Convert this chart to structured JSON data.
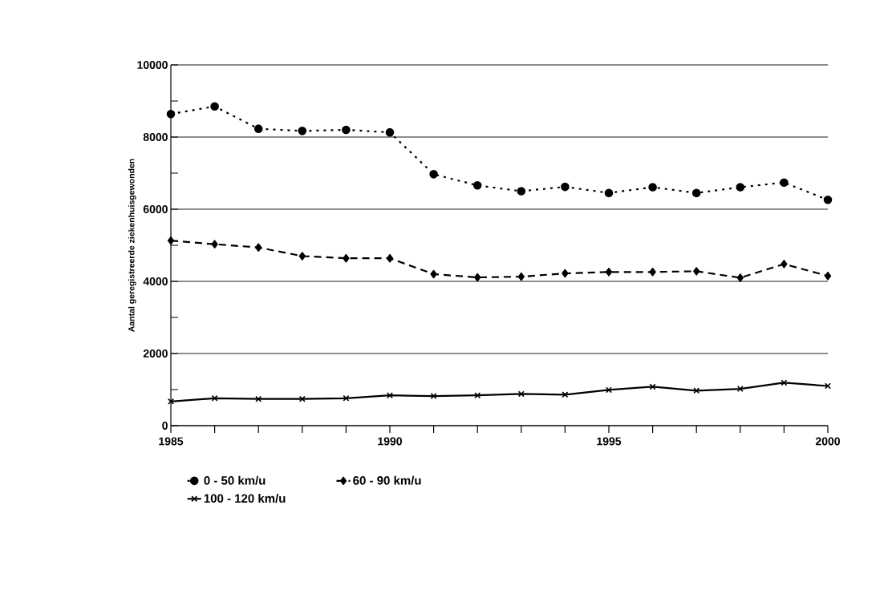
{
  "chart_data": {
    "type": "line",
    "ylabel": "Aantal geregistreerde ziekenhuisgewonden",
    "x": [
      1985,
      1986,
      1987,
      1988,
      1989,
      1990,
      1991,
      1992,
      1993,
      1994,
      1995,
      1996,
      1997,
      1998,
      1999,
      2000
    ],
    "series": [
      {
        "name": "0 - 50 km/u",
        "color": "#000000",
        "line_style": "dotted",
        "marker": "circle",
        "values": [
          8640,
          8850,
          8230,
          8170,
          8200,
          8130,
          6970,
          6660,
          6500,
          6620,
          6450,
          6610,
          6450,
          6610,
          6740,
          6260
        ]
      },
      {
        "name": "60 - 90 km/u",
        "color": "#000000",
        "line_style": "dashed",
        "marker": "diamond",
        "values": [
          5130,
          5030,
          4940,
          4700,
          4640,
          4640,
          4200,
          4110,
          4130,
          4220,
          4260,
          4260,
          4280,
          4100,
          4480,
          4150
        ]
      },
      {
        "name": "100 - 120 km/u",
        "color": "#000000",
        "line_style": "solid",
        "marker": "cross",
        "values": [
          670,
          760,
          740,
          740,
          760,
          840,
          820,
          840,
          880,
          860,
          990,
          1080,
          970,
          1020,
          1190,
          1100
        ]
      }
    ],
    "xlim": [
      1985,
      2000
    ],
    "xticks": [
      1985,
      {
        "value": 1986,
        "label": null
      },
      {
        "value": 1987,
        "label": null
      },
      {
        "value": 1988,
        "label": null
      },
      {
        "value": 1989,
        "label": null
      },
      1990,
      {
        "value": 1991,
        "label": null
      },
      {
        "value": 1992,
        "label": null
      },
      {
        "value": 1993,
        "label": null
      },
      {
        "value": 1994,
        "label": null
      },
      1995,
      {
        "value": 1996,
        "label": null
      },
      {
        "value": 1997,
        "label": null
      },
      {
        "value": 1998,
        "label": null
      },
      {
        "value": 1999,
        "label": null
      },
      2000
    ],
    "ylim": [
      0,
      10000
    ],
    "yticks": [
      0,
      {
        "value": 1000,
        "label": null
      },
      2000,
      {
        "value": 3000,
        "label": null
      },
      4000,
      {
        "value": 5000,
        "label": null
      },
      6000,
      {
        "value": 7000,
        "label": null
      },
      8000,
      {
        "value": 9000,
        "label": null
      },
      10000
    ],
    "grid": "y",
    "legend": "bottom"
  }
}
